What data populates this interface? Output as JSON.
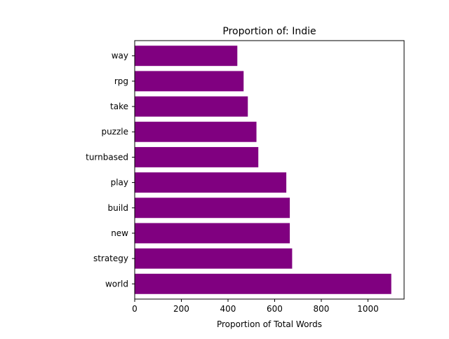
{
  "chart_data": {
    "type": "bar",
    "orientation": "horizontal",
    "title": "Proportion of: Indie",
    "xlabel": "Proportion of Total Words",
    "ylabel": "",
    "categories": [
      "world",
      "strategy",
      "new",
      "build",
      "play",
      "turnbased",
      "puzzle",
      "take",
      "rpg",
      "way"
    ],
    "values": [
      1100,
      675,
      665,
      665,
      650,
      530,
      522,
      485,
      467,
      440
    ],
    "xlim": [
      0,
      1155
    ],
    "xticks": [
      0,
      200,
      400,
      600,
      800,
      1000
    ],
    "grid": false,
    "legend": "none",
    "bar_color": "#800080"
  }
}
